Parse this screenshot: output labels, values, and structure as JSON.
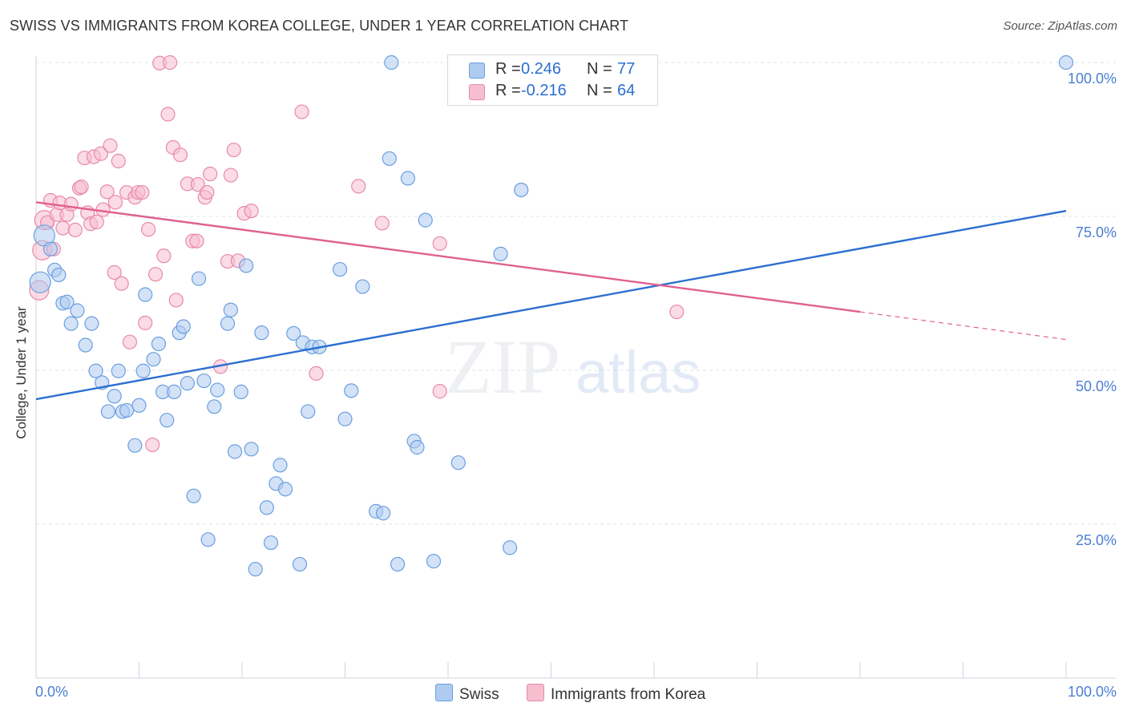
{
  "header": {
    "title": "SWISS VS IMMIGRANTS FROM KOREA COLLEGE, UNDER 1 YEAR CORRELATION CHART",
    "source": "Source: ZipAtlas.com"
  },
  "watermark": {
    "zip": "ZIP",
    "atlas": "atlas"
  },
  "legend": {
    "swiss": {
      "r_label": "R =",
      "r_value": "0.246",
      "n_label": "N =",
      "n_value": "77"
    },
    "korea": {
      "r_label": "R =",
      "r_value": "-0.216",
      "n_label": "N =",
      "n_value": "64"
    }
  },
  "bottom_legend": {
    "swiss": "Swiss",
    "korea": "Immigrants from Korea"
  },
  "colors": {
    "swiss_fill": "#aecbf0",
    "swiss_stroke": "#6a9fe0",
    "swiss_line": "#2b6fd0",
    "korea_fill": "#f7bed0",
    "korea_stroke": "#e88aa8",
    "korea_line": "#e06090",
    "axis_text": "#4a7fd0",
    "grid": "#dde3ea"
  },
  "chart_data": {
    "type": "scatter",
    "title": "SWISS VS IMMIGRANTS FROM KOREA COLLEGE, UNDER 1 YEAR CORRELATION CHART",
    "xlabel": "",
    "ylabel": "College, Under 1 year",
    "xlim": [
      0,
      100
    ],
    "ylim": [
      0,
      100
    ],
    "x_tick_labels": [
      "0.0%",
      "100.0%"
    ],
    "y_tick_labels": [
      "25.0%",
      "50.0%",
      "75.0%",
      "100.0%"
    ],
    "y_ticks": [
      25,
      50,
      75,
      100
    ],
    "grid": true,
    "legend_position": "top-center",
    "series": [
      {
        "name": "Swiss",
        "r": 0.246,
        "n": 77,
        "trend": {
          "x": [
            0,
            100
          ],
          "y": [
            45.3,
            75.9
          ]
        },
        "points": [
          [
            0.4,
            64.3
          ],
          [
            0.8,
            71.9
          ],
          [
            1.4,
            69.7
          ],
          [
            1.8,
            66.3
          ],
          [
            2.2,
            65.5
          ],
          [
            2.6,
            60.9
          ],
          [
            3.0,
            61.1
          ],
          [
            3.4,
            57.6
          ],
          [
            4.0,
            59.7
          ],
          [
            4.8,
            54.1
          ],
          [
            5.4,
            57.6
          ],
          [
            5.8,
            49.9
          ],
          [
            6.4,
            48.0
          ],
          [
            7.0,
            43.3
          ],
          [
            7.6,
            45.8
          ],
          [
            8.0,
            49.9
          ],
          [
            8.4,
            43.3
          ],
          [
            8.8,
            43.5
          ],
          [
            9.6,
            37.8
          ],
          [
            10.0,
            44.3
          ],
          [
            10.4,
            49.9
          ],
          [
            10.6,
            62.3
          ],
          [
            11.4,
            51.8
          ],
          [
            11.9,
            54.3
          ],
          [
            12.3,
            46.5
          ],
          [
            12.7,
            41.9
          ],
          [
            13.4,
            46.5
          ],
          [
            13.9,
            56.1
          ],
          [
            14.3,
            57.1
          ],
          [
            14.7,
            47.9
          ],
          [
            15.3,
            29.6
          ],
          [
            15.8,
            64.9
          ],
          [
            16.3,
            48.3
          ],
          [
            16.7,
            22.5
          ],
          [
            17.3,
            44.1
          ],
          [
            17.6,
            46.8
          ],
          [
            18.6,
            57.6
          ],
          [
            18.9,
            59.8
          ],
          [
            19.3,
            36.8
          ],
          [
            19.9,
            46.5
          ],
          [
            20.4,
            67.0
          ],
          [
            20.9,
            37.2
          ],
          [
            21.3,
            17.7
          ],
          [
            21.9,
            56.1
          ],
          [
            22.4,
            27.7
          ],
          [
            22.8,
            22.0
          ],
          [
            23.3,
            31.6
          ],
          [
            23.7,
            34.6
          ],
          [
            24.2,
            30.7
          ],
          [
            25.0,
            56.0
          ],
          [
            25.6,
            18.5
          ],
          [
            25.9,
            54.5
          ],
          [
            26.4,
            43.3
          ],
          [
            26.8,
            53.8
          ],
          [
            27.5,
            53.8
          ],
          [
            29.5,
            66.4
          ],
          [
            30.0,
            42.1
          ],
          [
            30.6,
            46.7
          ],
          [
            31.7,
            63.6
          ],
          [
            33.0,
            27.1
          ],
          [
            33.7,
            26.8
          ],
          [
            34.3,
            84.4
          ],
          [
            35.1,
            18.5
          ],
          [
            36.1,
            81.2
          ],
          [
            36.7,
            38.5
          ],
          [
            37.0,
            37.5
          ],
          [
            37.8,
            74.4
          ],
          [
            38.6,
            19.0
          ],
          [
            41.0,
            35.0
          ],
          [
            45.1,
            68.9
          ],
          [
            46.0,
            21.2
          ],
          [
            47.1,
            79.3
          ],
          [
            34.5,
            100
          ],
          [
            43.0,
            100
          ],
          [
            100,
            100
          ],
          [
            56,
            100
          ],
          [
            57,
            100
          ]
        ]
      },
      {
        "name": "Immigrants from Korea",
        "r": -0.216,
        "n": 64,
        "trend": {
          "x": [
            0,
            80
          ],
          "y": [
            77.3,
            59.5
          ],
          "dashed_to": [
            100,
            55.0
          ]
        },
        "points": [
          [
            0.3,
            63.0
          ],
          [
            0.6,
            69.5
          ],
          [
            0.8,
            74.4
          ],
          [
            1.1,
            74.0
          ],
          [
            1.4,
            77.6
          ],
          [
            1.7,
            69.7
          ],
          [
            2.0,
            75.3
          ],
          [
            2.3,
            77.2
          ],
          [
            2.6,
            73.1
          ],
          [
            3.0,
            75.3
          ],
          [
            3.4,
            77.0
          ],
          [
            3.8,
            72.8
          ],
          [
            4.2,
            79.6
          ],
          [
            4.4,
            79.8
          ],
          [
            4.7,
            84.5
          ],
          [
            5.0,
            75.6
          ],
          [
            5.3,
            73.8
          ],
          [
            5.6,
            84.7
          ],
          [
            5.9,
            74.1
          ],
          [
            6.3,
            85.2
          ],
          [
            6.5,
            76.1
          ],
          [
            6.9,
            79.0
          ],
          [
            7.2,
            86.5
          ],
          [
            7.7,
            77.3
          ],
          [
            8.0,
            84.0
          ],
          [
            7.6,
            65.9
          ],
          [
            8.3,
            64.1
          ],
          [
            8.8,
            78.9
          ],
          [
            9.1,
            54.6
          ],
          [
            9.6,
            78.1
          ],
          [
            9.9,
            78.9
          ],
          [
            10.3,
            78.9
          ],
          [
            10.6,
            57.7
          ],
          [
            10.9,
            72.9
          ],
          [
            11.3,
            37.9
          ],
          [
            11.6,
            65.6
          ],
          [
            12.0,
            99.9
          ],
          [
            12.4,
            68.6
          ],
          [
            12.8,
            91.6
          ],
          [
            13.3,
            86.2
          ],
          [
            13.6,
            61.4
          ],
          [
            14.0,
            85.0
          ],
          [
            14.7,
            80.3
          ],
          [
            15.2,
            71.0
          ],
          [
            15.6,
            71.0
          ],
          [
            15.7,
            80.2
          ],
          [
            16.4,
            78.1
          ],
          [
            16.6,
            78.9
          ],
          [
            16.9,
            81.9
          ],
          [
            17.9,
            50.6
          ],
          [
            18.6,
            67.7
          ],
          [
            18.9,
            81.7
          ],
          [
            19.2,
            85.8
          ],
          [
            19.6,
            67.8
          ],
          [
            20.2,
            75.5
          ],
          [
            20.9,
            75.9
          ],
          [
            25.8,
            92.0
          ],
          [
            27.2,
            49.5
          ],
          [
            31.3,
            79.9
          ],
          [
            33.6,
            73.9
          ],
          [
            39.2,
            70.6
          ],
          [
            39.2,
            46.6
          ],
          [
            62.2,
            59.5
          ],
          [
            13.0,
            100
          ]
        ]
      }
    ]
  }
}
